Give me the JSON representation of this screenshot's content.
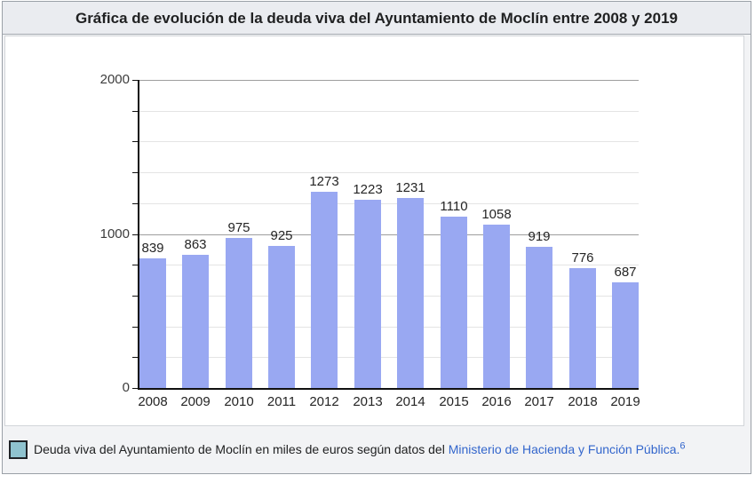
{
  "widget": {
    "title": "Gráfica de evolución de la deuda viva del Ayuntamiento de Moclín entre 2008 y 2019"
  },
  "chart_data": {
    "type": "bar",
    "categories": [
      "2008",
      "2009",
      "2010",
      "2011",
      "2012",
      "2013",
      "2014",
      "2015",
      "2016",
      "2017",
      "2018",
      "2019"
    ],
    "values": [
      839,
      863,
      975,
      925,
      1273,
      1223,
      1231,
      1110,
      1058,
      919,
      776,
      687
    ],
    "title": "",
    "xlabel": "",
    "ylabel": "",
    "ylim": [
      0,
      2000
    ],
    "ytick_label_values": [
      0,
      1000,
      2000
    ],
    "minor_grid_step": 200,
    "major_grid_values": [
      1000,
      2000
    ],
    "grid": true,
    "bar_color": "#99a8f2",
    "legend_position": "bottom"
  },
  "legend": {
    "swatch_color": "#8fc3cf",
    "text": "Deuda viva del Ayuntamiento de Moclín en miles de euros según datos del ",
    "link_text": "Ministerio de Hacienda y Función Pública.",
    "reference_superscript": "6"
  },
  "colors": {
    "bar": "#99a8f2",
    "legend_swatch": "#8fc3cf",
    "link": "#3366cc",
    "title_background": "#eaecf0",
    "panel_background": "#f2f3f5",
    "outer_border": "#9aa0a7",
    "chart_border": "#d2d5d9",
    "minor_gridline": "#e4e4e4",
    "major_gridline": "#9e9e9e",
    "axis": "#111111"
  }
}
